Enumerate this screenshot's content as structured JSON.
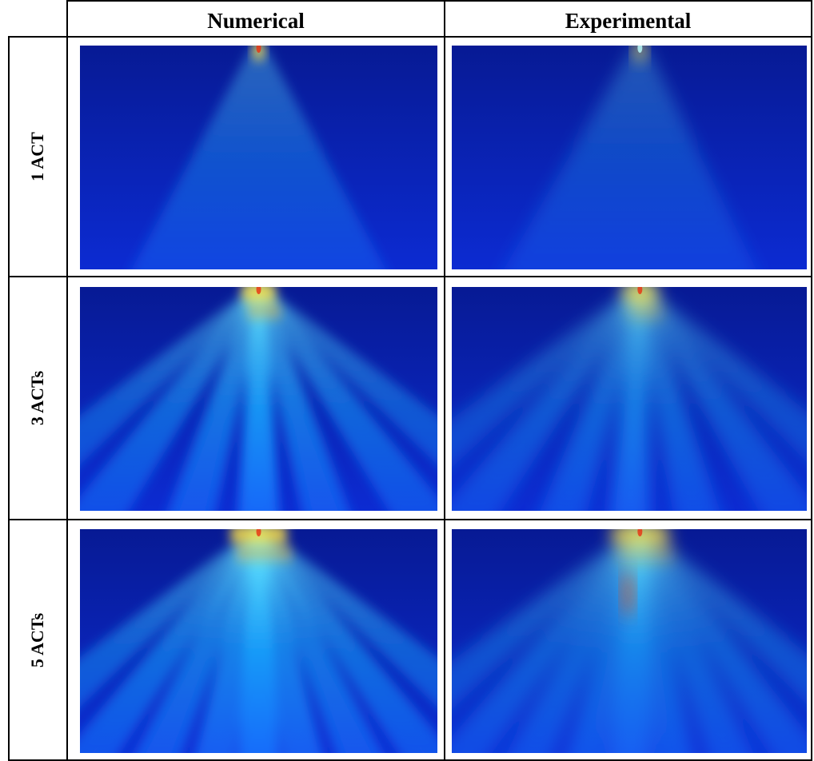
{
  "header": {
    "columns": [
      "Numerical",
      "Experimental"
    ]
  },
  "rows": [
    {
      "label": "1 ACT"
    },
    {
      "label": "3 ACTs"
    },
    {
      "label": "5 ACTs"
    }
  ]
}
